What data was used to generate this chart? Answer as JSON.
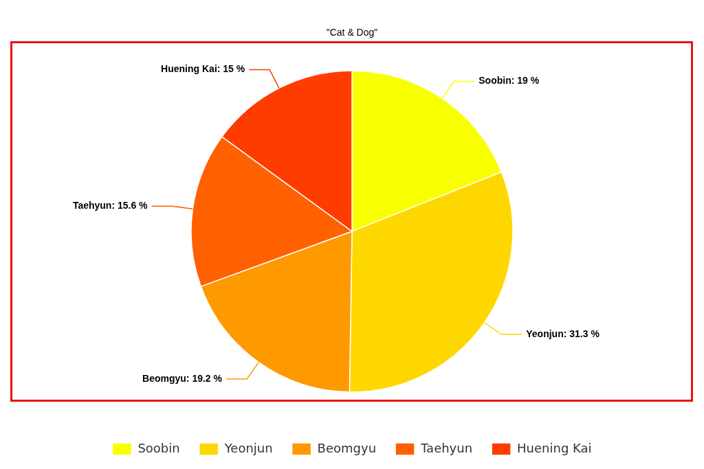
{
  "chart_data": {
    "type": "pie",
    "title": "\"Cat & Dog\"",
    "categories": [
      "Soobin",
      "Yeonjun",
      "Beomgyu",
      "Taehyun",
      "Huening Kai"
    ],
    "values": [
      19,
      31.3,
      19.2,
      15.6,
      15
    ],
    "colors": [
      "#f7ff00",
      "#ffd700",
      "#ff9900",
      "#ff6000",
      "#ff3c00"
    ],
    "value_labels": [
      "Soobin: 19 %",
      "Yeonjun: 31.3 %",
      "Beomgyu: 19.2 %",
      "Taehyun: 15.6 %",
      "Huening Kai: 15 %"
    ],
    "legend": "bottom"
  }
}
